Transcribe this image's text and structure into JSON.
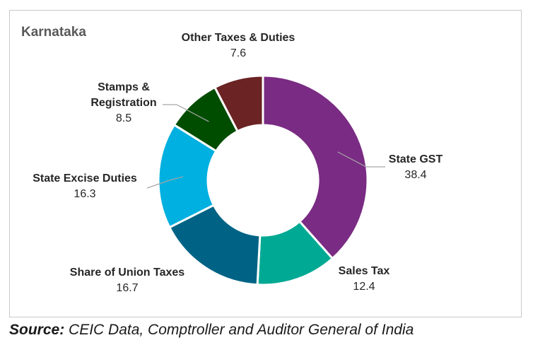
{
  "chart_data": {
    "type": "pie",
    "variant": "donut",
    "title": "Karnataka",
    "slices": [
      {
        "label": "State GST",
        "value": 38.4,
        "color": "#7a2b83"
      },
      {
        "label": "Sales Tax",
        "value": 12.4,
        "color": "#00a993"
      },
      {
        "label": "Share of Union Taxes",
        "value": 16.7,
        "color": "#006385"
      },
      {
        "label": "State Excise Duties",
        "value": 16.3,
        "color": "#00b0e0"
      },
      {
        "label": "Stamps & Registration",
        "value": 8.5,
        "color": "#004d00"
      },
      {
        "label": "Other Taxes & Duties",
        "value": 7.6,
        "color": "#6b2323"
      }
    ]
  },
  "source": {
    "prefix": "Source:",
    "text": " CEIC Data, Comptroller and Auditor General of India"
  }
}
